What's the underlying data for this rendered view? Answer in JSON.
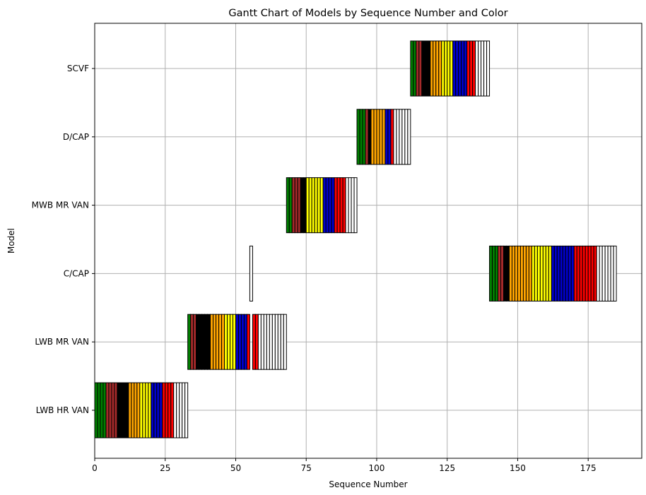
{
  "chart_data": {
    "type": "gantt",
    "title": "Gantt Chart of Models by Sequence Number and Color",
    "xlabel": "Sequence Number",
    "ylabel": "Model",
    "xlim": [
      0,
      194
    ],
    "xticks": [
      0,
      25,
      50,
      75,
      100,
      125,
      150,
      175
    ],
    "grid": true,
    "legend": "none",
    "categories": [
      "LWB HR VAN",
      "LWB MR VAN",
      "C/CAP",
      "MWB MR VAN",
      "D/CAP",
      "SCVF"
    ],
    "colors": {
      "green": "#008000",
      "brown": "#a52a2a",
      "black": "#000000",
      "orange": "#ffa500",
      "yellow": "#ffff00",
      "blue": "#0000cd",
      "red": "#ff0000",
      "white": "#ffffff"
    },
    "series": [
      {
        "model": "LWB HR VAN",
        "runs": [
          {
            "color": "green",
            "start": 0,
            "count": 4
          },
          {
            "color": "brown",
            "start": 4,
            "count": 4
          },
          {
            "color": "black",
            "start": 8,
            "count": 4
          },
          {
            "color": "orange",
            "start": 12,
            "count": 4
          },
          {
            "color": "yellow",
            "start": 16,
            "count": 4
          },
          {
            "color": "blue",
            "start": 20,
            "count": 4
          },
          {
            "color": "red",
            "start": 24,
            "count": 4
          },
          {
            "color": "white",
            "start": 28,
            "count": 5
          }
        ]
      },
      {
        "model": "LWB MR VAN",
        "runs": [
          {
            "color": "green",
            "start": 33,
            "count": 1
          },
          {
            "color": "brown",
            "start": 34,
            "count": 2
          },
          {
            "color": "black",
            "start": 36,
            "count": 5
          },
          {
            "color": "orange",
            "start": 41,
            "count": 5
          },
          {
            "color": "yellow",
            "start": 46,
            "count": 4
          },
          {
            "color": "blue",
            "start": 50,
            "count": 4
          },
          {
            "color": "red",
            "start": 54,
            "count": 1
          },
          {
            "color": "red",
            "start": 56,
            "count": 2
          },
          {
            "color": "white",
            "start": 58,
            "count": 10
          }
        ]
      },
      {
        "model": "C/CAP",
        "runs": [
          {
            "color": "white",
            "start": 55,
            "count": 1
          },
          {
            "color": "green",
            "start": 140,
            "count": 3
          },
          {
            "color": "brown",
            "start": 143,
            "count": 2
          },
          {
            "color": "black",
            "start": 145,
            "count": 2
          },
          {
            "color": "orange",
            "start": 147,
            "count": 8
          },
          {
            "color": "yellow",
            "start": 155,
            "count": 7
          },
          {
            "color": "blue",
            "start": 162,
            "count": 8
          },
          {
            "color": "red",
            "start": 170,
            "count": 8
          },
          {
            "color": "white",
            "start": 178,
            "count": 7
          }
        ]
      },
      {
        "model": "MWB MR VAN",
        "runs": [
          {
            "color": "green",
            "start": 68,
            "count": 2
          },
          {
            "color": "brown",
            "start": 70,
            "count": 3
          },
          {
            "color": "black",
            "start": 73,
            "count": 2
          },
          {
            "color": "yellow",
            "start": 75,
            "count": 6
          },
          {
            "color": "blue",
            "start": 81,
            "count": 4
          },
          {
            "color": "red",
            "start": 85,
            "count": 4
          },
          {
            "color": "white",
            "start": 89,
            "count": 4
          }
        ]
      },
      {
        "model": "D/CAP",
        "runs": [
          {
            "color": "green",
            "start": 93,
            "count": 3
          },
          {
            "color": "brown",
            "start": 96,
            "count": 1
          },
          {
            "color": "black",
            "start": 97,
            "count": 1
          },
          {
            "color": "orange",
            "start": 98,
            "count": 5
          },
          {
            "color": "blue",
            "start": 103,
            "count": 2
          },
          {
            "color": "red",
            "start": 105,
            "count": 1
          },
          {
            "color": "white",
            "start": 106,
            "count": 6
          }
        ]
      },
      {
        "model": "SCVF",
        "runs": [
          {
            "color": "green",
            "start": 112,
            "count": 2
          },
          {
            "color": "brown",
            "start": 114,
            "count": 2
          },
          {
            "color": "black",
            "start": 116,
            "count": 3
          },
          {
            "color": "orange",
            "start": 119,
            "count": 4
          },
          {
            "color": "yellow",
            "start": 123,
            "count": 4
          },
          {
            "color": "blue",
            "start": 127,
            "count": 5
          },
          {
            "color": "red",
            "start": 132,
            "count": 3
          },
          {
            "color": "white",
            "start": 135,
            "count": 5
          }
        ]
      }
    ]
  }
}
